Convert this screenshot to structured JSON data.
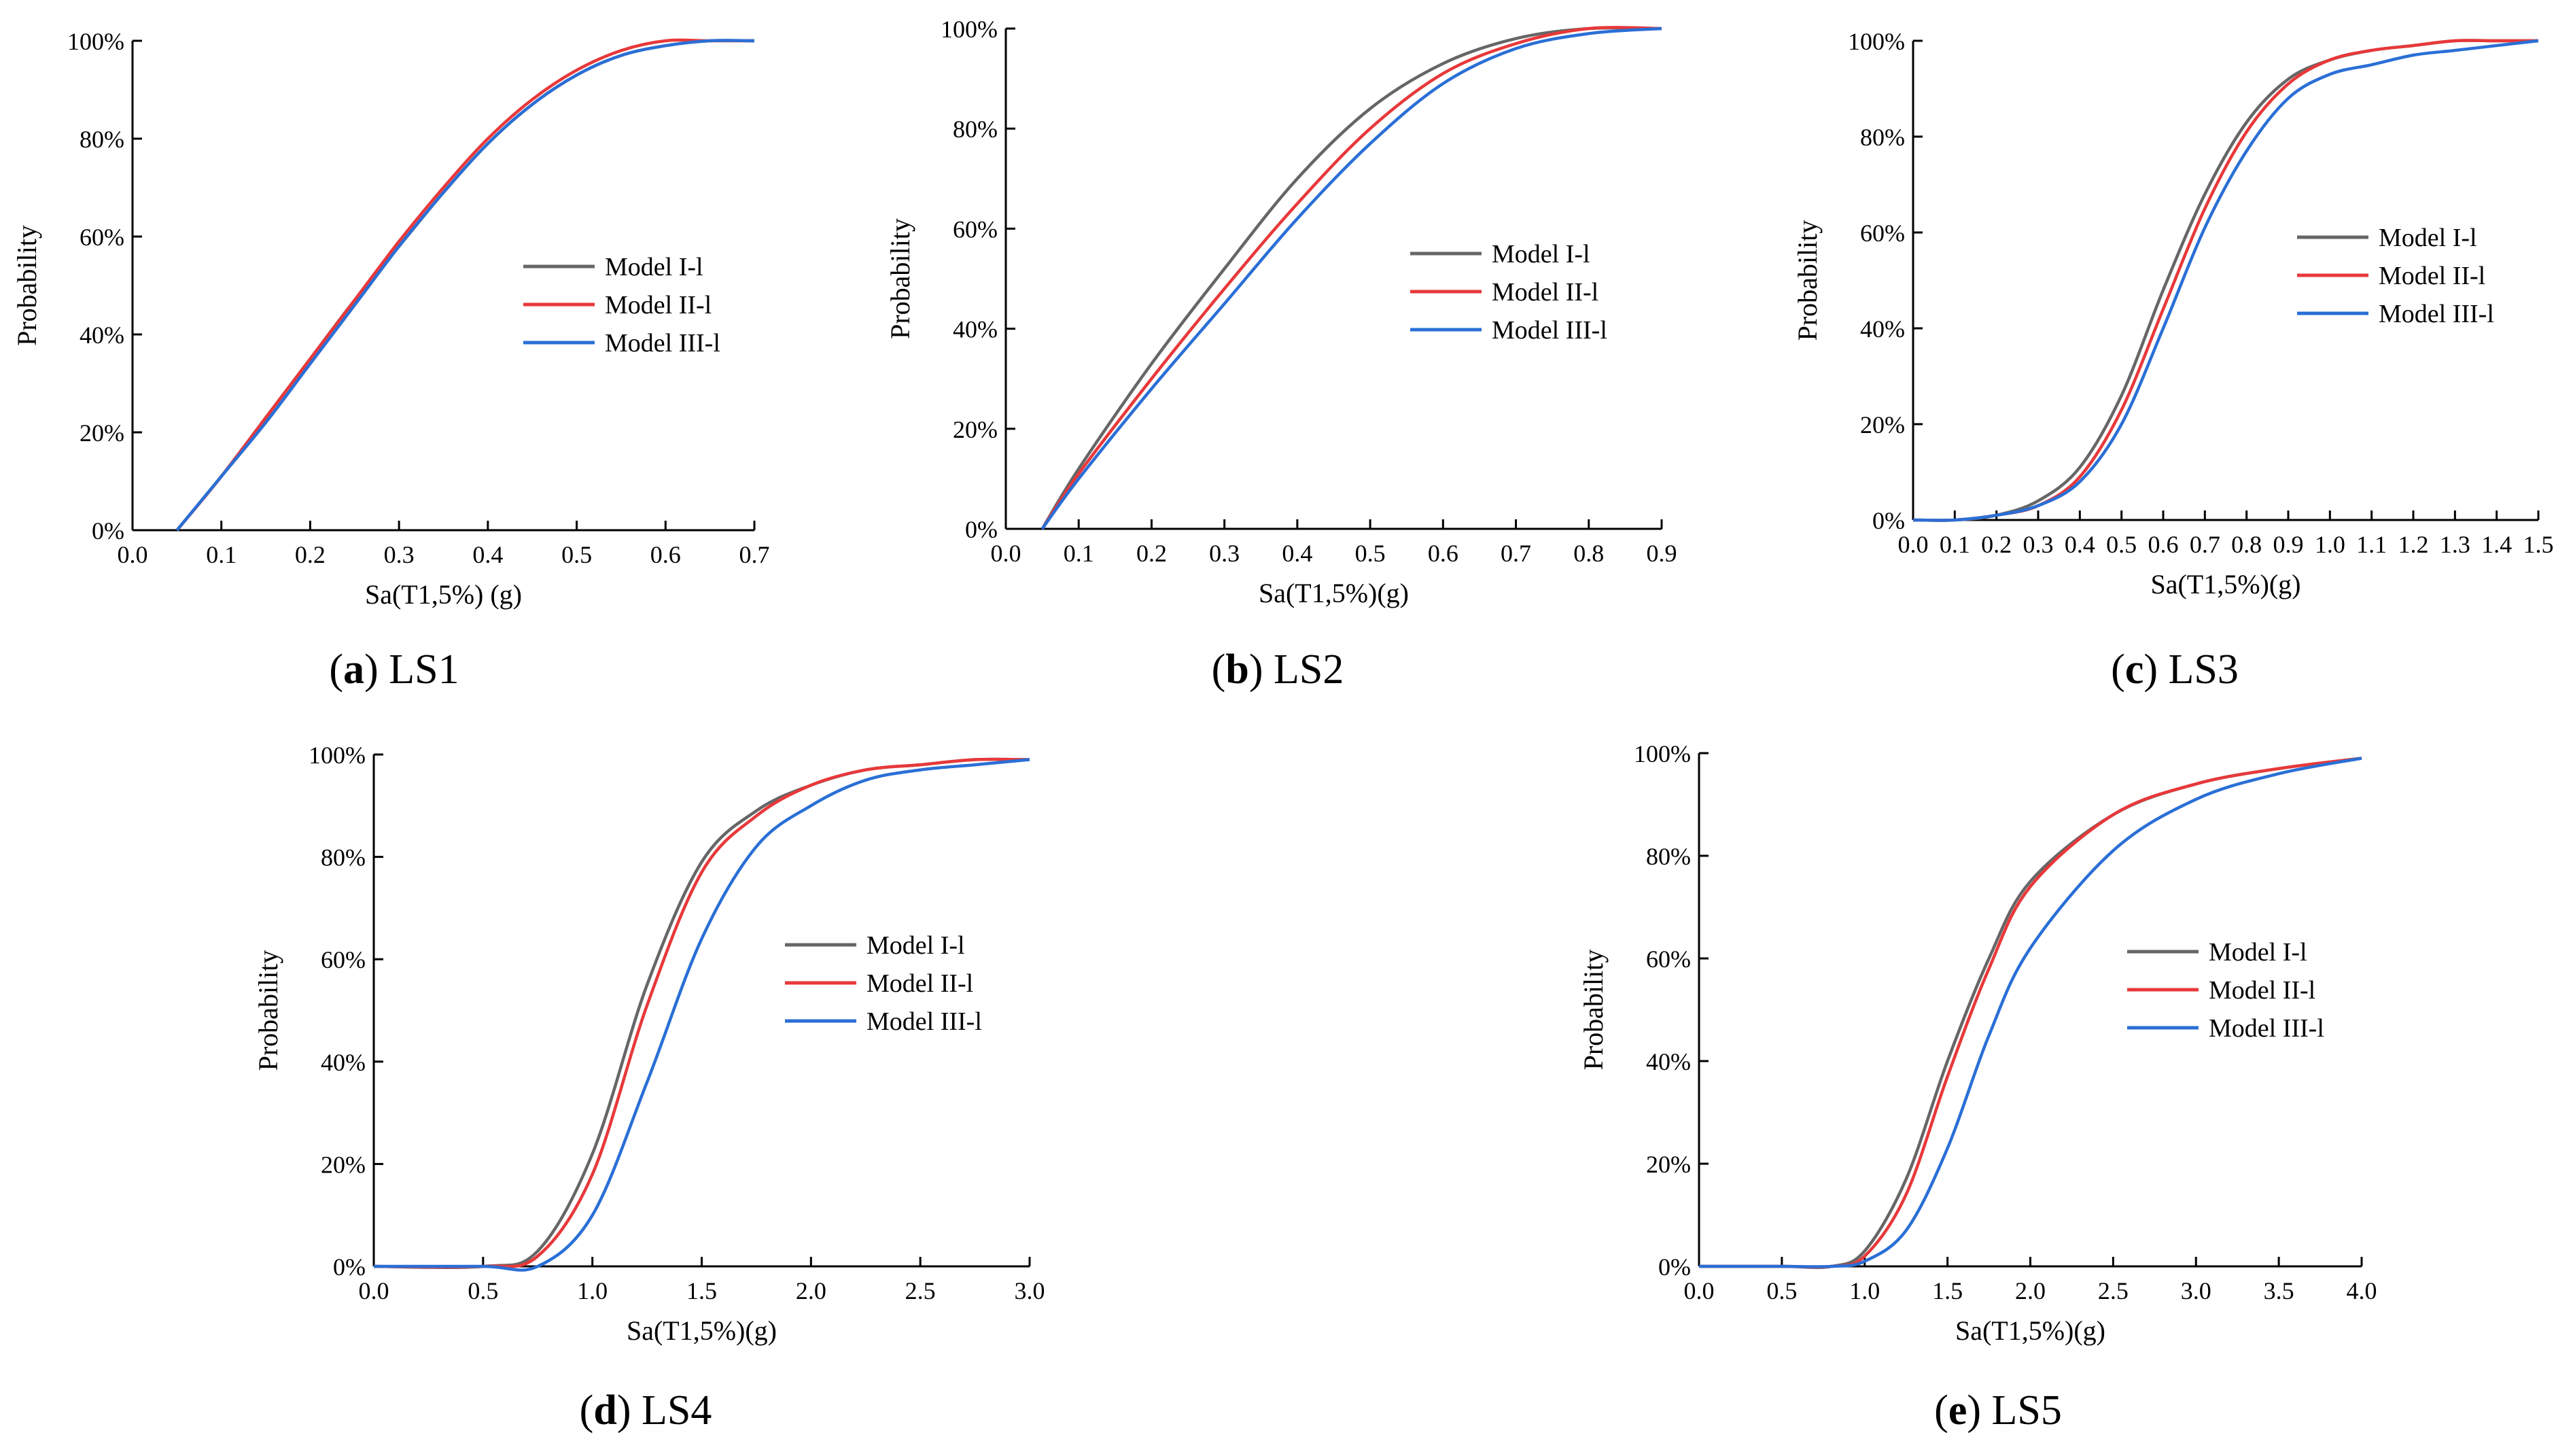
{
  "series_colors": {
    "Model I-l": "#666666",
    "Model II-l": "#e8383a",
    "Model III-l": "#2a6fd6"
  },
  "chart_data": [
    {
      "id": "a",
      "type": "line",
      "caption_letter": "a",
      "caption_text": "LS1",
      "xlabel": "Sa(T1,5%) (g)",
      "ylabel": "Probability",
      "xlim": [
        0.0,
        0.7
      ],
      "ylim": [
        0,
        100
      ],
      "xticks": [
        "0.0",
        "0.1",
        "0.2",
        "0.3",
        "0.4",
        "0.5",
        "0.6",
        "0.7"
      ],
      "yticks": [
        "0%",
        "20%",
        "40%",
        "60%",
        "80%",
        "100%"
      ],
      "legend": [
        "Model I-l",
        "Model II-l",
        "Model III-l"
      ],
      "series": [
        {
          "name": "Model I-l",
          "x": [
            0.05,
            0.1,
            0.15,
            0.2,
            0.25,
            0.3,
            0.35,
            0.4,
            0.45,
            0.5,
            0.55,
            0.6,
            0.65,
            0.7
          ],
          "values": [
            0,
            11,
            23,
            35,
            47,
            58,
            69,
            79,
            87,
            93,
            97,
            99,
            100,
            100
          ]
        },
        {
          "name": "Model II-l",
          "x": [
            0.05,
            0.1,
            0.15,
            0.2,
            0.25,
            0.3,
            0.35,
            0.4,
            0.45,
            0.5,
            0.55,
            0.6,
            0.65,
            0.7
          ],
          "values": [
            0,
            11,
            23,
            35,
            47,
            59,
            70,
            80,
            88,
            94,
            98,
            100,
            100,
            100
          ]
        },
        {
          "name": "Model III-l",
          "x": [
            0.05,
            0.1,
            0.15,
            0.2,
            0.25,
            0.3,
            0.35,
            0.4,
            0.45,
            0.5,
            0.55,
            0.6,
            0.65,
            0.7
          ],
          "values": [
            0,
            11,
            22,
            34,
            46,
            58,
            69,
            79,
            87,
            93,
            97,
            99,
            100,
            100
          ]
        }
      ]
    },
    {
      "id": "b",
      "type": "line",
      "caption_letter": "b",
      "caption_text": "LS2",
      "xlabel": "Sa(T1,5%)(g)",
      "ylabel": "Probability",
      "xlim": [
        0.0,
        0.9
      ],
      "ylim": [
        0,
        100
      ],
      "xticks": [
        "0.0",
        "0.1",
        "0.2",
        "0.3",
        "0.4",
        "0.5",
        "0.6",
        "0.7",
        "0.8",
        "0.9"
      ],
      "yticks": [
        "0%",
        "20%",
        "40%",
        "60%",
        "80%",
        "100%"
      ],
      "legend": [
        "Model I-l",
        "Model II-l",
        "Model III-l"
      ],
      "series": [
        {
          "name": "Model I-l",
          "x": [
            0.05,
            0.1,
            0.2,
            0.3,
            0.4,
            0.5,
            0.6,
            0.7,
            0.8,
            0.9
          ],
          "values": [
            0,
            12,
            33,
            52,
            70,
            84,
            93,
            98,
            100,
            100
          ]
        },
        {
          "name": "Model II-l",
          "x": [
            0.05,
            0.1,
            0.2,
            0.3,
            0.4,
            0.5,
            0.6,
            0.7,
            0.8,
            0.9
          ],
          "values": [
            0,
            11,
            30,
            48,
            65,
            80,
            91,
            97,
            100,
            100
          ]
        },
        {
          "name": "Model III-l",
          "x": [
            0.05,
            0.1,
            0.2,
            0.3,
            0.4,
            0.5,
            0.6,
            0.7,
            0.8,
            0.9
          ],
          "values": [
            0,
            10,
            28,
            45,
            62,
            77,
            89,
            96,
            99,
            100
          ]
        }
      ]
    },
    {
      "id": "c",
      "type": "line",
      "caption_letter": "c",
      "caption_text": "LS3",
      "xlabel": "Sa(T1,5%)(g)",
      "ylabel": "Probability",
      "xlim": [
        0.0,
        1.5
      ],
      "ylim": [
        0,
        100
      ],
      "xticks": [
        "0.0",
        "0.1",
        "0.2",
        "0.3",
        "0.4",
        "0.5",
        "0.6",
        "0.7",
        "0.8",
        "0.9",
        "1.0",
        "1.1",
        "1.2",
        "1.3",
        "1.4",
        "1.5"
      ],
      "yticks": [
        "0%",
        "20%",
        "40%",
        "60%",
        "80%",
        "100%"
      ],
      "legend": [
        "Model I-l",
        "Model II-l",
        "Model III-l"
      ],
      "series": [
        {
          "name": "Model I-l",
          "x": [
            0.0,
            0.1,
            0.2,
            0.3,
            0.4,
            0.5,
            0.6,
            0.7,
            0.8,
            0.9,
            1.0,
            1.1,
            1.2,
            1.3,
            1.4,
            1.5
          ],
          "values": [
            0,
            0,
            1,
            4,
            11,
            26,
            48,
            68,
            83,
            92,
            96,
            98,
            99,
            100,
            100,
            100
          ]
        },
        {
          "name": "Model II-l",
          "x": [
            0.0,
            0.1,
            0.2,
            0.3,
            0.4,
            0.5,
            0.6,
            0.7,
            0.8,
            0.9,
            1.0,
            1.1,
            1.2,
            1.3,
            1.4,
            1.5
          ],
          "values": [
            0,
            0,
            1,
            3,
            9,
            23,
            44,
            65,
            81,
            91,
            96,
            98,
            99,
            100,
            100,
            100
          ]
        },
        {
          "name": "Model III-l",
          "x": [
            0.0,
            0.1,
            0.2,
            0.3,
            0.4,
            0.5,
            0.6,
            0.7,
            0.8,
            0.9,
            1.0,
            1.1,
            1.2,
            1.3,
            1.4,
            1.5
          ],
          "values": [
            0,
            0,
            1,
            3,
            8,
            20,
            40,
            61,
            77,
            88,
            93,
            95,
            97,
            98,
            99,
            100
          ]
        }
      ]
    },
    {
      "id": "d",
      "type": "line",
      "caption_letter": "d",
      "caption_text": "LS4",
      "xlabel": "Sa(T1,5%)(g)",
      "ylabel": "Probability",
      "xlim": [
        0.0,
        3.0
      ],
      "ylim": [
        0,
        100
      ],
      "xticks": [
        "0.0",
        "0.5",
        "1.0",
        "1.5",
        "2.0",
        "2.5",
        "3.0"
      ],
      "yticks": [
        "0%",
        "20%",
        "40%",
        "60%",
        "80%",
        "100%"
      ],
      "legend": [
        "Model I-l",
        "Model II-l",
        "Model III-l"
      ],
      "series": [
        {
          "name": "Model I-l",
          "x": [
            0.0,
            0.5,
            0.75,
            1.0,
            1.25,
            1.5,
            1.75,
            2.0,
            2.25,
            2.5,
            2.75,
            3.0
          ],
          "values": [
            0,
            0,
            3,
            22,
            55,
            79,
            89,
            94,
            97,
            98,
            99,
            99
          ]
        },
        {
          "name": "Model II-l",
          "x": [
            0.0,
            0.5,
            0.75,
            1.0,
            1.25,
            1.5,
            1.75,
            2.0,
            2.25,
            2.5,
            2.75,
            3.0
          ],
          "values": [
            0,
            0,
            2,
            18,
            51,
            77,
            88,
            94,
            97,
            98,
            99,
            99
          ]
        },
        {
          "name": "Model III-l",
          "x": [
            0.0,
            0.5,
            0.75,
            1.0,
            1.25,
            1.5,
            1.75,
            2.0,
            2.25,
            2.5,
            2.75,
            3.0
          ],
          "values": [
            0,
            0,
            0,
            10,
            36,
            64,
            82,
            90,
            95,
            97,
            98,
            99
          ]
        }
      ]
    },
    {
      "id": "e",
      "type": "line",
      "caption_letter": "e",
      "caption_text": "LS5",
      "xlabel": "Sa(T1,5%)(g)",
      "ylabel": "Probability",
      "xlim": [
        0.0,
        4.0
      ],
      "ylim": [
        0,
        100
      ],
      "xticks": [
        "0.0",
        "0.5",
        "1.0",
        "1.5",
        "2.0",
        "2.5",
        "3.0",
        "3.5",
        "4.0"
      ],
      "yticks": [
        "0%",
        "20%",
        "40%",
        "60%",
        "80%",
        "100%"
      ],
      "legend": [
        "Model I-l",
        "Model II-l",
        "Model III-l"
      ],
      "series": [
        {
          "name": "Model I-l",
          "x": [
            0.0,
            0.5,
            0.8,
            1.0,
            1.25,
            1.5,
            1.75,
            2.0,
            2.5,
            3.0,
            3.5,
            4.0
          ],
          "values": [
            0,
            0,
            0,
            3,
            17,
            40,
            60,
            75,
            88,
            94,
            97,
            99
          ]
        },
        {
          "name": "Model II-l",
          "x": [
            0.0,
            0.5,
            0.8,
            1.0,
            1.25,
            1.5,
            1.75,
            2.0,
            2.5,
            3.0,
            3.5,
            4.0
          ],
          "values": [
            0,
            0,
            0,
            2,
            14,
            37,
            58,
            74,
            88,
            94,
            97,
            99
          ]
        },
        {
          "name": "Model III-l",
          "x": [
            0.0,
            0.5,
            0.8,
            1.0,
            1.25,
            1.5,
            1.75,
            2.0,
            2.5,
            3.0,
            3.5,
            4.0
          ],
          "values": [
            0,
            0,
            0,
            1,
            7,
            23,
            45,
            62,
            81,
            91,
            96,
            99
          ]
        }
      ]
    }
  ]
}
